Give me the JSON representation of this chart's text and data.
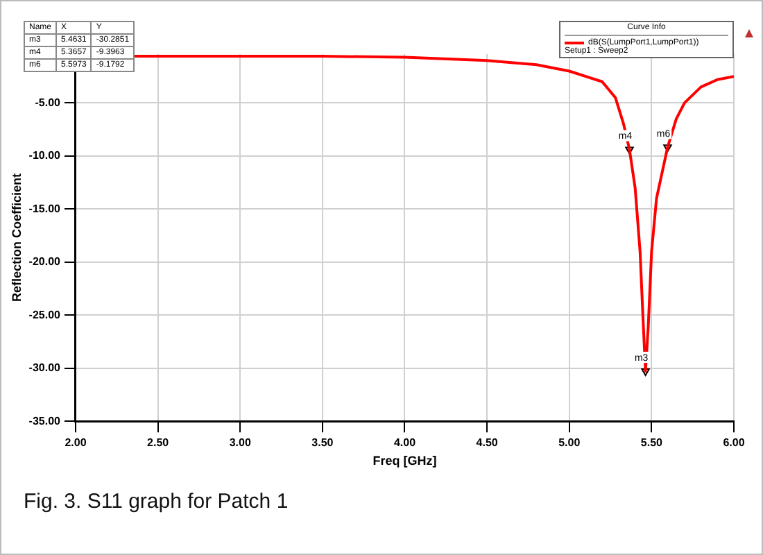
{
  "chart_data": {
    "type": "line",
    "xlabel": "Freq [GHz]",
    "ylabel": "Reflection Coefficient",
    "legend_title": "Curve Info",
    "x": [
      2.35,
      2.5,
      3.0,
      3.5,
      4.0,
      4.5,
      4.8,
      5.0,
      5.1,
      5.2,
      5.28,
      5.33,
      5.3657,
      5.4,
      5.43,
      5.45,
      5.4631,
      5.48,
      5.5,
      5.53,
      5.5973,
      5.65,
      5.7,
      5.8,
      5.9,
      6.0
    ],
    "series": [
      {
        "name": "dB(S(LumpPort1,LumpPort1))",
        "color": "#ff0000",
        "values": [
          -0.6,
          -0.6,
          -0.6,
          -0.6,
          -0.7,
          -1.0,
          -1.4,
          -2.0,
          -2.5,
          -3.0,
          -4.5,
          -7.0,
          -9.3963,
          -13.0,
          -19.0,
          -26.0,
          -30.2851,
          -26.0,
          -19.0,
          -14.0,
          -9.1792,
          -6.5,
          -5.0,
          -3.5,
          -2.8,
          -2.5
        ]
      },
      {
        "type": "scatter",
        "marker": "triangle",
        "color": "#000000",
        "x": [
          5.4631,
          5.3657,
          5.5973
        ],
        "values": [
          -30.2851,
          -9.3963,
          -9.1792
        ]
      }
    ],
    "xlim": [
      2.0,
      6.0
    ],
    "xticks": [
      {
        "value": 2,
        "label": "2.00"
      },
      {
        "value": 2.5,
        "label": "2.50"
      },
      {
        "value": 3,
        "label": "3.00"
      },
      {
        "value": 3.5,
        "label": "3.50"
      },
      {
        "value": 4,
        "label": "4.00"
      },
      {
        "value": 4.5,
        "label": "4.50"
      },
      {
        "value": 5,
        "label": "5.00"
      },
      {
        "value": 5.5,
        "label": "5.50"
      },
      {
        "value": 6,
        "label": "6.00"
      }
    ],
    "ylim": [
      -35,
      -0.4
    ],
    "yticks": [
      {
        "value": -35,
        "label": "-35.00"
      },
      {
        "value": -30,
        "label": "-30.00"
      },
      {
        "value": -25,
        "label": "-25.00"
      },
      {
        "value": -20,
        "label": "-20.00"
      },
      {
        "value": -15,
        "label": "-15.00"
      },
      {
        "value": -10,
        "label": "-10.00"
      },
      {
        "value": -5,
        "label": "-5.00"
      }
    ],
    "grid": true,
    "legend": "top right",
    "marker": "none",
    "line_style": "solid",
    "annotations": [
      "Name",
      "X",
      "Y",
      "m3",
      "5.4631",
      "-30.2851",
      "m4",
      "5.3657",
      "-9.3963",
      "m6",
      "5.5973",
      "-9.1792",
      "Setup1 : Sweep2",
      "Fig. 3. S11 graph for Patch 1",
      {
        "text": "m3",
        "x": 5.4631,
        "y": -30.2851
      },
      {
        "text": "m4",
        "x": 5.3657,
        "y": -9.3963
      },
      {
        "text": "m6",
        "x": 5.5973,
        "y": -9.1792
      }
    ]
  }
}
